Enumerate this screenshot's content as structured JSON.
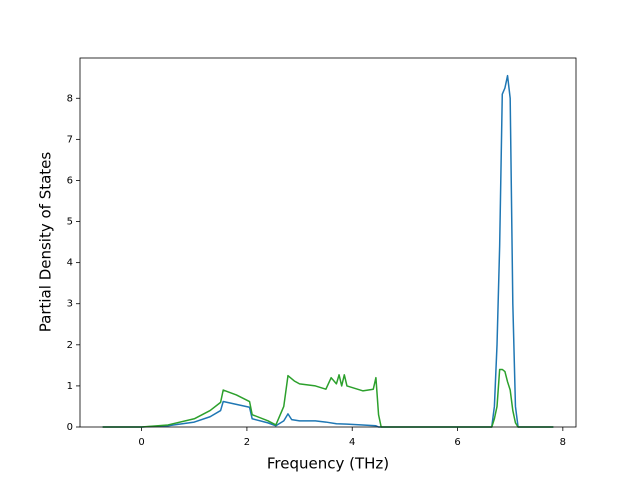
{
  "chart_data": {
    "type": "line",
    "xlabel": "Frequency (THz)",
    "ylabel": "Partial Density of States",
    "xlim": [
      -1.17,
      8.25
    ],
    "ylim": [
      0,
      8.98
    ],
    "xticks": [
      0,
      2,
      4,
      6,
      8
    ],
    "yticks": [
      0,
      1,
      2,
      3,
      4,
      5,
      6,
      7,
      8
    ],
    "series": [
      {
        "color": "#1f77b4",
        "x": [
          -0.74,
          0,
          0.5,
          1.0,
          1.3,
          1.5,
          1.55,
          1.8,
          2.05,
          2.1,
          2.4,
          2.55,
          2.7,
          2.78,
          2.85,
          3.0,
          3.3,
          3.5,
          3.7,
          3.9,
          4.2,
          4.45,
          4.5,
          6.5,
          6.65,
          6.7,
          6.75,
          6.8,
          6.85,
          6.9,
          6.95,
          7.0,
          7.05,
          7.1,
          7.15,
          7.82
        ],
        "values": [
          0,
          0,
          0.03,
          0.12,
          0.25,
          0.4,
          0.62,
          0.55,
          0.48,
          0.2,
          0.1,
          0.03,
          0.15,
          0.32,
          0.18,
          0.15,
          0.15,
          0.12,
          0.08,
          0.07,
          0.05,
          0.03,
          0,
          0,
          0,
          0.5,
          2.0,
          4.4,
          8.1,
          8.25,
          8.55,
          8.0,
          3.0,
          0.5,
          0,
          0
        ]
      },
      {
        "color": "#2ca02c",
        "x": [
          -0.74,
          0,
          0.5,
          1.0,
          1.3,
          1.5,
          1.55,
          1.8,
          2.05,
          2.1,
          2.4,
          2.55,
          2.7,
          2.78,
          2.9,
          3.0,
          3.3,
          3.5,
          3.6,
          3.7,
          3.75,
          3.8,
          3.85,
          3.9,
          4.2,
          4.4,
          4.45,
          4.5,
          4.55,
          6.5,
          6.65,
          6.7,
          6.75,
          6.8,
          6.85,
          6.9,
          6.95,
          7.0,
          7.05,
          7.1,
          7.15,
          7.82
        ],
        "values": [
          0,
          0,
          0.05,
          0.2,
          0.4,
          0.6,
          0.9,
          0.78,
          0.62,
          0.3,
          0.15,
          0.05,
          0.5,
          1.25,
          1.12,
          1.05,
          1.0,
          0.92,
          1.2,
          1.05,
          1.27,
          1.0,
          1.27,
          1.0,
          0.88,
          0.92,
          1.2,
          0.3,
          0,
          0,
          0,
          0.2,
          0.5,
          1.4,
          1.4,
          1.35,
          1.1,
          0.9,
          0.4,
          0.1,
          0,
          0
        ]
      }
    ]
  }
}
